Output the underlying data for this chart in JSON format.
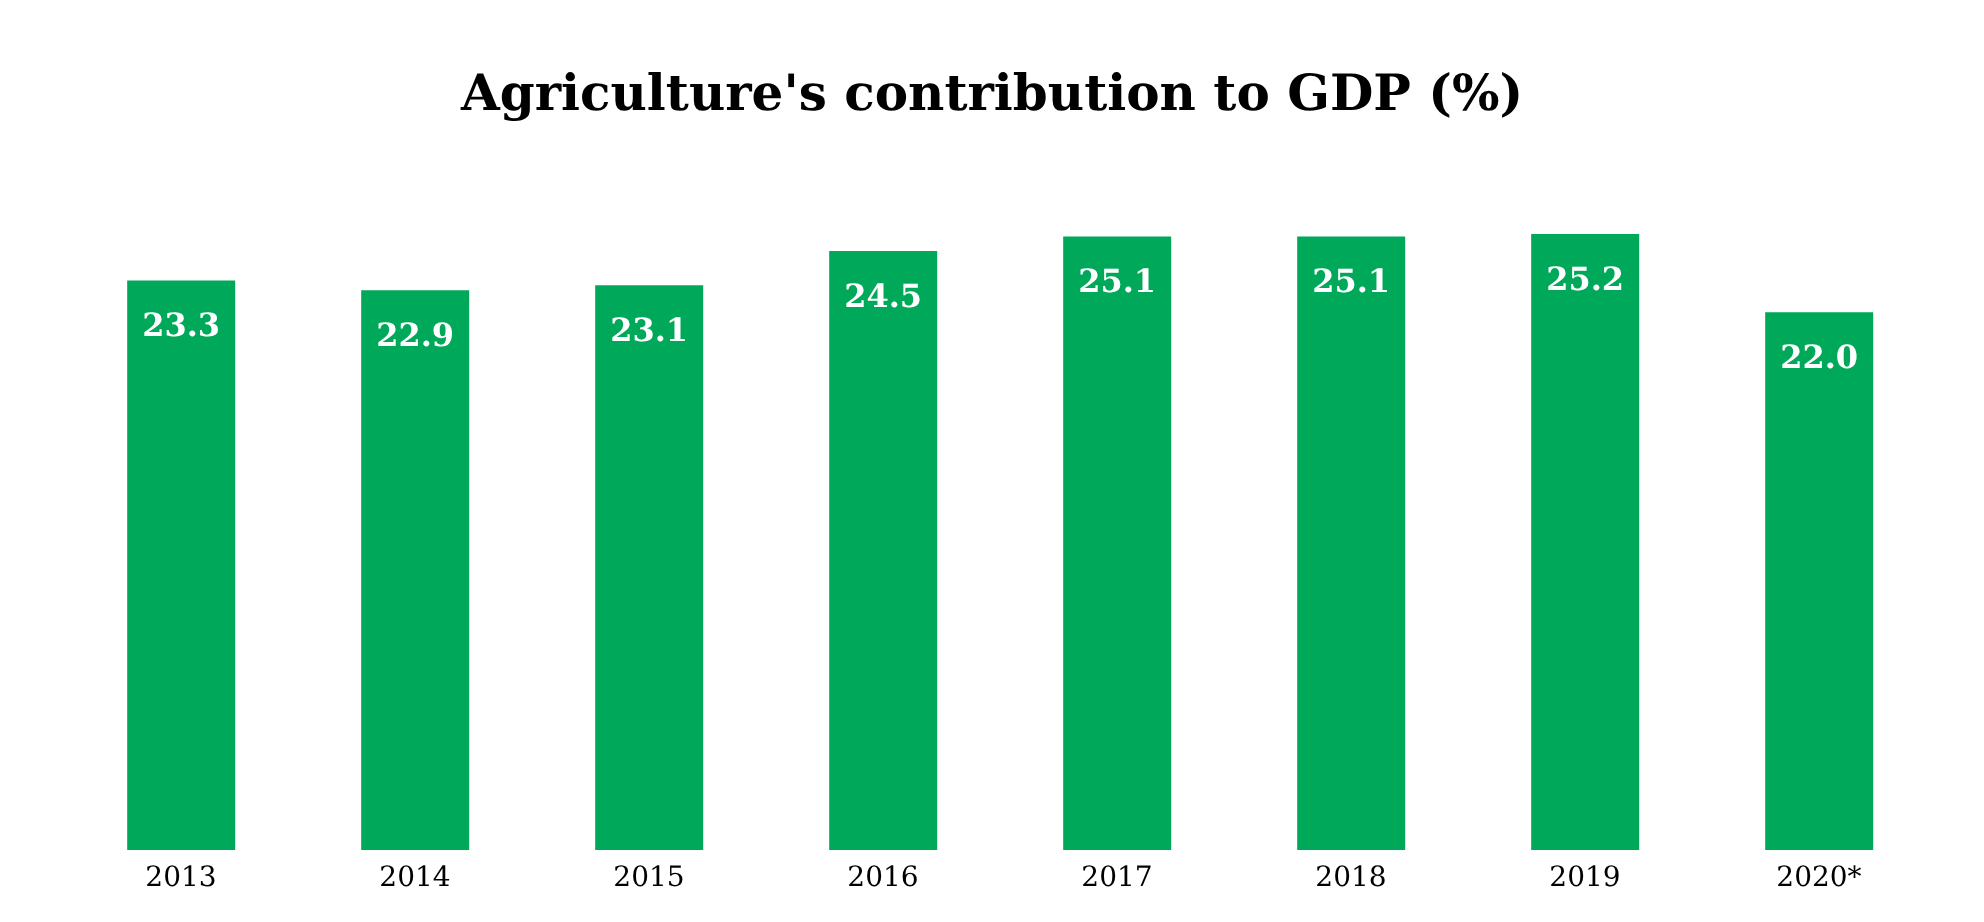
{
  "chart_data": {
    "type": "bar",
    "title": "Agriculture's contribution to GDP (%)",
    "categories": [
      "2013",
      "2014",
      "2015",
      "2016",
      "2017",
      "2018",
      "2019",
      "2020*"
    ],
    "values": [
      23.3,
      22.9,
      23.1,
      24.5,
      25.1,
      25.1,
      25.2,
      22.0
    ],
    "value_labels": [
      "23.3",
      "22.9",
      "23.1",
      "24.5",
      "25.1",
      "25.1",
      "25.2",
      "22.0"
    ],
    "color": "#00a859"
  }
}
